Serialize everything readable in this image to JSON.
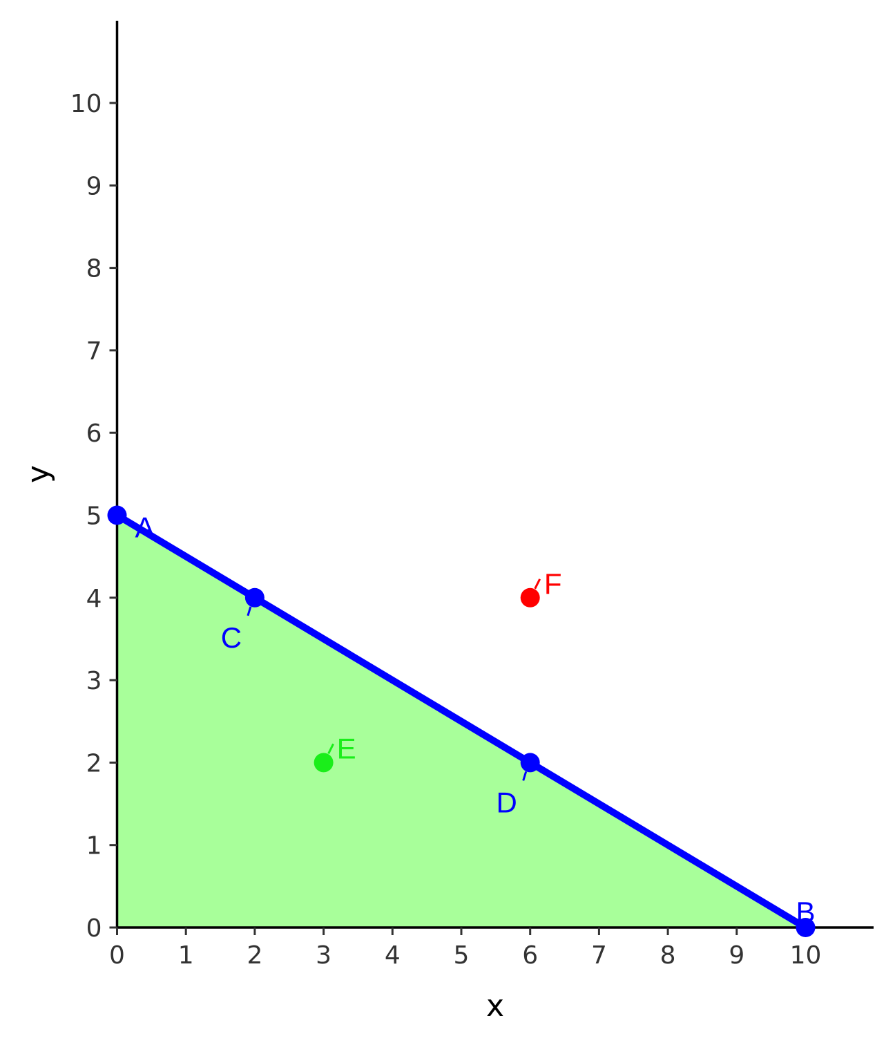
{
  "chart_data": {
    "type": "line",
    "xlabel": "x",
    "ylabel": "y",
    "xlim": [
      0,
      11
    ],
    "ylim": [
      0,
      11
    ],
    "xticks": [
      0,
      1,
      2,
      3,
      4,
      5,
      6,
      7,
      8,
      9,
      10
    ],
    "yticks": [
      0,
      1,
      2,
      3,
      4,
      5,
      6,
      7,
      8,
      9,
      10
    ],
    "grid": false,
    "feasible_region": {
      "vertices": [
        [
          0,
          0
        ],
        [
          0,
          5
        ],
        [
          10,
          0
        ]
      ],
      "color": "#a8ff9a"
    },
    "line": {
      "points": [
        [
          0,
          5
        ],
        [
          10,
          0
        ]
      ],
      "color": "#0000ff"
    },
    "points": [
      {
        "label": "A",
        "x": 0,
        "y": 5,
        "color": "#0000ff",
        "label_dir": "right"
      },
      {
        "label": "B",
        "x": 10,
        "y": 0,
        "color": "#0000ff",
        "label_dir": "up"
      },
      {
        "label": "C",
        "x": 2,
        "y": 4,
        "color": "#0000ff",
        "label_dir": "down-left"
      },
      {
        "label": "D",
        "x": 6,
        "y": 2,
        "color": "#0000ff",
        "label_dir": "down-left"
      },
      {
        "label": "E",
        "x": 3,
        "y": 2,
        "color": "#1aee1a",
        "label_dir": "up-right"
      },
      {
        "label": "F",
        "x": 6,
        "y": 4,
        "color": "#ff0000",
        "label_dir": "up-right"
      }
    ]
  }
}
